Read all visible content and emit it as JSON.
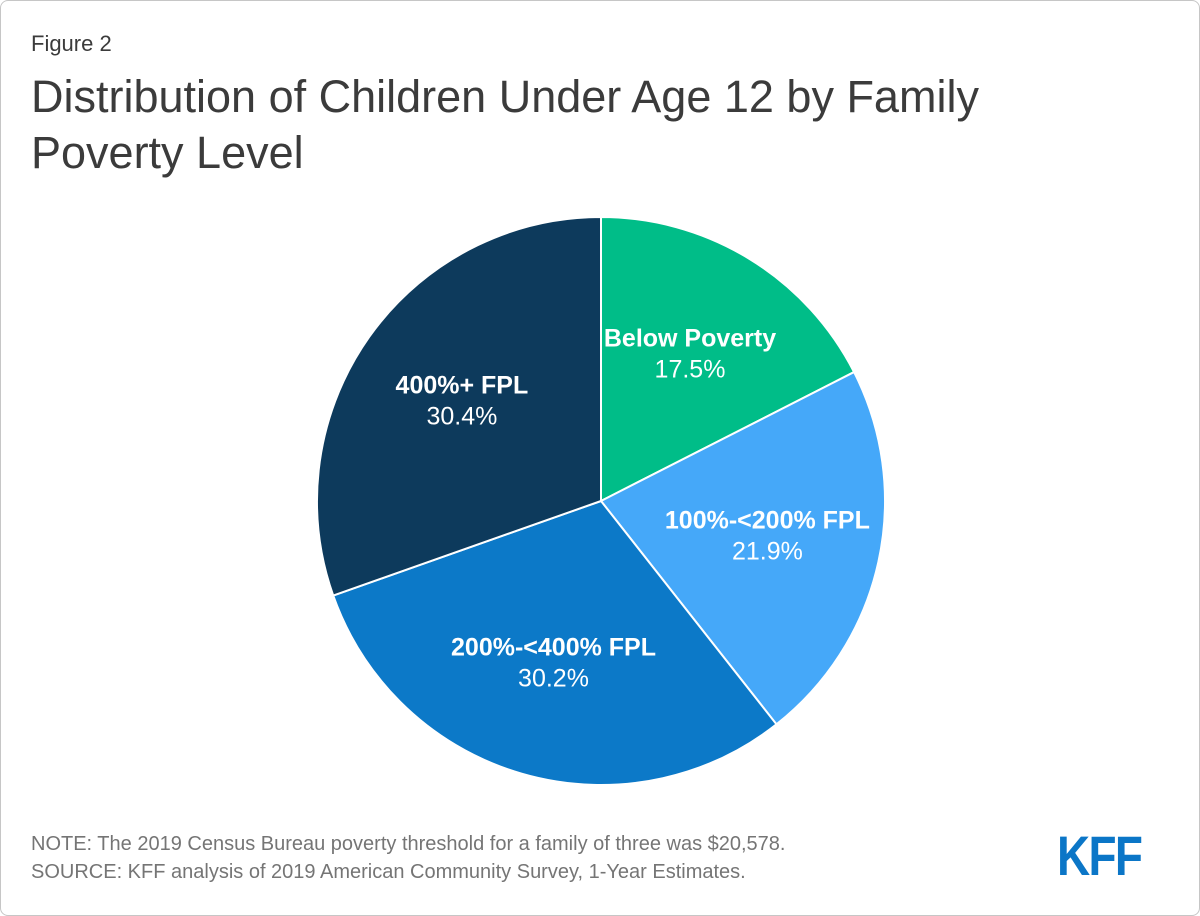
{
  "figure_label": "Figure 2",
  "title": "Distribution of Children Under Age 12 by Family Poverty Level",
  "notes": {
    "note": "NOTE: The 2019 Census Bureau poverty threshold for a family of three was $20,578.",
    "source": "SOURCE: KFF analysis of 2019 American Community Survey, 1-Year Estimates."
  },
  "logo": {
    "text": "KFF",
    "color": "#0B76C7"
  },
  "colors": {
    "background": "#FFFFFF",
    "frame_border": "#C6C6C6",
    "title_text": "#3B3B3B",
    "note_text": "#757575",
    "slice_label_text": "#FFFFFF",
    "slice_divider": "#FFFFFF"
  },
  "chart_data": {
    "type": "pie",
    "title": "Distribution of Children Under Age 12 by Family Poverty Level",
    "direction": "clockwise",
    "start_angle_deg": 0,
    "legend": "none",
    "labels_inside": true,
    "label_color": "#FFFFFF",
    "slices": [
      {
        "label": "Below Poverty",
        "value": 17.5,
        "value_label": "17.5%",
        "color": "#00BD88"
      },
      {
        "label": "100%-<200% FPL",
        "value": 21.9,
        "value_label": "21.9%",
        "color": "#45A8F9"
      },
      {
        "label": "200%-<400% FPL",
        "value": 30.2,
        "value_label": "30.2%",
        "color": "#0C79C8"
      },
      {
        "label": "400%+ FPL",
        "value": 30.4,
        "value_label": "30.4%",
        "color": "#0D3A5C"
      }
    ]
  }
}
